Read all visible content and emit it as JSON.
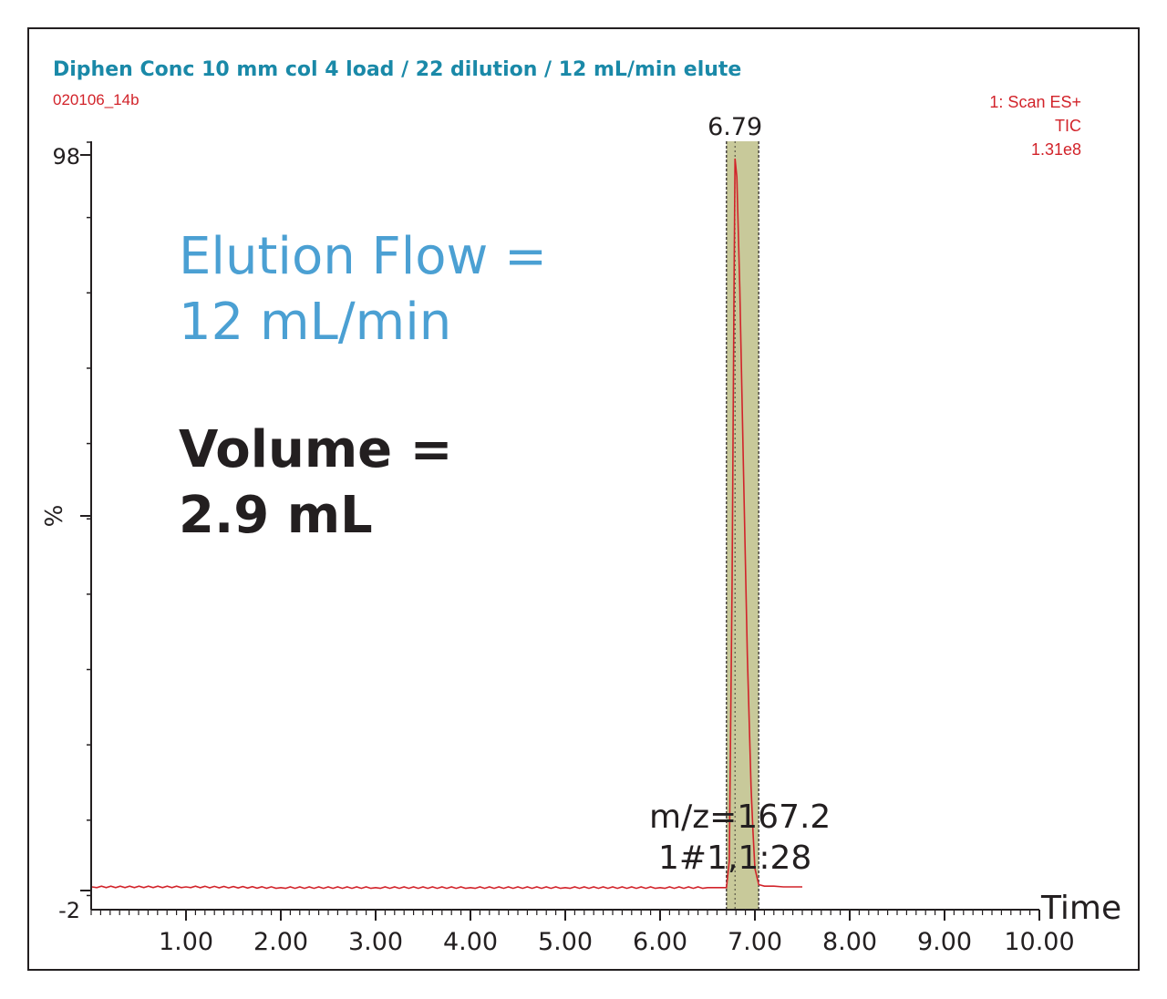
{
  "header": {
    "title": "Diphen Conc 10 mm col 4 load / 22 dilution / 12 mL/min elute",
    "sample_id": "020106_14b",
    "scan_info": [
      "1: Scan ES+",
      "TIC",
      "1.31e8"
    ]
  },
  "annotations": {
    "flow_line1": "Elution Flow =",
    "flow_line2": "12 mL/min",
    "volume_line1": "Volume =",
    "volume_line2": "2.9 mL",
    "mz_line1": "m/z=167.2",
    "mz_line2": "1#1,1:28"
  },
  "colors": {
    "title": "#1a89a8",
    "trace": "#d2232a",
    "flow_text": "#4ba0d3",
    "highlight_band": "#c8c99a",
    "axis": "#231f20"
  },
  "chart_data": {
    "type": "line",
    "title": "Diphen Conc 10 mm col 4 load / 22 dilution / 12 mL/min elute",
    "xlabel": "Time",
    "ylabel": "%",
    "xlim": [
      0,
      10
    ],
    "ylim": [
      -2,
      98
    ],
    "x_ticks": [
      1,
      2,
      3,
      4,
      5,
      6,
      7,
      8,
      9,
      10
    ],
    "x_tick_labels": [
      "1.00",
      "2.00",
      "3.00",
      "4.00",
      "5.00",
      "6.00",
      "7.00",
      "8.00",
      "9.00",
      "10.00"
    ],
    "y_tick_labels": [
      "98",
      "%",
      "-2"
    ],
    "grid": false,
    "peak": {
      "x": 6.79,
      "label": "6.79"
    },
    "highlight_region": [
      6.7,
      7.04
    ],
    "series": [
      {
        "x": [
          0.01,
          1,
          2,
          3,
          4,
          5,
          6,
          6.5,
          6.7,
          6.73,
          6.76,
          6.78,
          6.79,
          6.81,
          6.84,
          6.88,
          6.92,
          6.96,
          6.98,
          7.0,
          7.04,
          7.1,
          7.2,
          7.3,
          7.4,
          7.5
        ],
        "y": [
          -1.5,
          -1.5,
          -1.6,
          -1.6,
          -1.6,
          -1.6,
          -1.6,
          -1.6,
          -1.6,
          2,
          40,
          80,
          97.5,
          95,
          80,
          55,
          30,
          12,
          6,
          1,
          -1.2,
          -1.4,
          -1.4,
          -1.5,
          -1.5,
          -1.5
        ]
      }
    ]
  }
}
